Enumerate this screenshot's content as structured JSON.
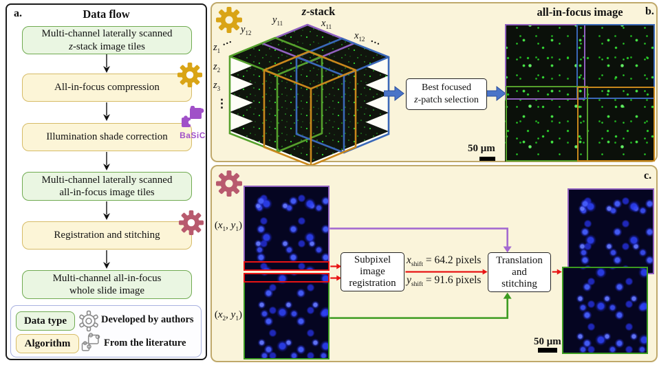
{
  "colors": {
    "panel_bg": "#faf4da",
    "panel_border": "#bfa86a",
    "box_green_fill": "#eaf6e2",
    "box_green_border": "#6faa50",
    "box_yellow_fill": "#fcf5d7",
    "box_yellow_border": "#d6bb66",
    "gear_gold": "#d9a416",
    "gear_maroon": "#b85a6e",
    "basic_purple": "#a050c8",
    "tile_green": "#55a02c",
    "tile_purple": "#9061c0",
    "tile_blue": "#3a68b8",
    "tile_orange": "#c9871c",
    "arrow_blue": "#4a74c8",
    "arrow_red": "#e81414",
    "connector_purple": "#a46ad0",
    "connector_green": "#3c9b20",
    "fluor_green": "#35e035",
    "fluor_blue": "#2a3ce0"
  },
  "panel_a": {
    "label": "a.",
    "title": "Data flow",
    "boxes": [
      {
        "lines": [
          [
            {
              "t": "Multi-channel laterally scanned"
            }
          ],
          [
            {
              "i": "z"
            },
            {
              "t": "-stack image tiles"
            }
          ]
        ]
      },
      {
        "lines": [
          [
            {
              "t": "All-in-focus compression"
            }
          ]
        ]
      },
      {
        "lines": [
          [
            {
              "t": "Illumination shade correction"
            }
          ]
        ]
      },
      {
        "lines": [
          [
            {
              "t": "Multi-channel laterally scanned"
            }
          ],
          [
            {
              "t": "all-in-focus image tiles"
            }
          ]
        ]
      },
      {
        "lines": [
          [
            {
              "t": "Registration and stitching"
            }
          ]
        ]
      },
      {
        "lines": [
          [
            {
              "t": "Multi-channel all-in-focus"
            }
          ],
          [
            {
              "t": "whole slide image"
            }
          ]
        ]
      }
    ],
    "basic": "BaSiC",
    "legend": {
      "data_type": "Data type",
      "algorithm": "Algorithm",
      "developed": "Developed by authors",
      "literature": "From the literature"
    }
  },
  "panel_b": {
    "label": "b.",
    "title": [
      {
        "i": "z"
      },
      {
        "t": "-stack"
      }
    ],
    "aif_title": "all-in-focus image",
    "cube": {
      "y12": [
        {
          "i": "y"
        },
        {
          "sub": "12"
        }
      ],
      "y11": [
        {
          "i": "y"
        },
        {
          "sub": "11"
        }
      ],
      "x11": [
        {
          "i": "x"
        },
        {
          "sub": "11"
        }
      ],
      "x12": [
        {
          "i": "x"
        },
        {
          "sub": "12"
        }
      ],
      "z1": [
        {
          "i": "z"
        },
        {
          "sub": "1"
        }
      ],
      "z2": [
        {
          "i": "z"
        },
        {
          "sub": "2"
        }
      ],
      "z3": [
        {
          "i": "z"
        },
        {
          "sub": "3"
        }
      ],
      "dots": "…",
      "vdots": "⋮"
    },
    "select_box": {
      "line1": [
        {
          "t": "Best focused"
        }
      ],
      "line2": [
        {
          "i": "z"
        },
        {
          "t": "-patch selection"
        }
      ]
    },
    "scalebar": "50 μm"
  },
  "panel_c": {
    "label": "c.",
    "tile1_label": [
      {
        "t": "("
      },
      {
        "i": "x"
      },
      {
        "sub": "1"
      },
      {
        "t": ", "
      },
      {
        "i": "y"
      },
      {
        "sub": "1"
      },
      {
        "t": ")"
      }
    ],
    "tile2_label": [
      {
        "t": "("
      },
      {
        "i": "x"
      },
      {
        "sub": "2"
      },
      {
        "t": ", "
      },
      {
        "i": "y"
      },
      {
        "sub": "1"
      },
      {
        "t": ")"
      }
    ],
    "reg_box": [
      "Subpixel",
      "image",
      "registration"
    ],
    "x_shift": [
      {
        "i": "x"
      },
      {
        "sub": "shift"
      },
      {
        "t": " = 64.2 pixels"
      }
    ],
    "y_shift": [
      {
        "i": "y"
      },
      {
        "sub": "shift"
      },
      {
        "t": " = 91.6 pixels"
      }
    ],
    "stitch_box": [
      "Translation",
      "and",
      "stitching"
    ],
    "scalebar": "50 μm"
  }
}
